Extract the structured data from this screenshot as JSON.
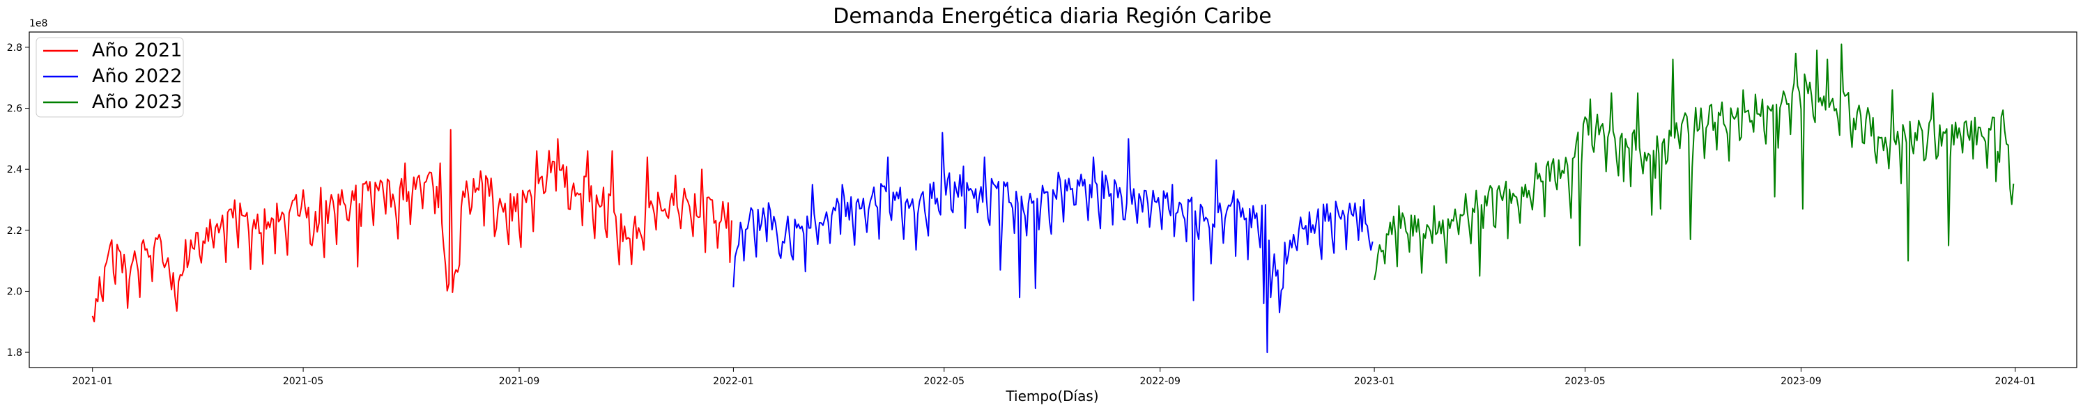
{
  "chart_data": {
    "type": "line",
    "title": "Demanda Energética diaria Región Caribe",
    "xlabel": "Tiempo(Días)",
    "ylabel": "",
    "y_multiplier_label": "1e8",
    "y_scale": 100000000,
    "xlim": [
      "2020-11-26",
      "2024-02-05"
    ],
    "ylim": [
      1.75,
      2.85
    ],
    "yticks": [
      1.8,
      2.0,
      2.2,
      2.4,
      2.6,
      2.8
    ],
    "ytick_labels": [
      "1.8",
      "2.0",
      "2.2",
      "2.4",
      "2.6",
      "2.8"
    ],
    "xticks": [
      "2021-01-01",
      "2021-05-01",
      "2021-09-01",
      "2022-01-01",
      "2022-05-01",
      "2022-09-01",
      "2023-01-01",
      "2023-05-01",
      "2023-09-01",
      "2024-01-01"
    ],
    "xtick_labels": [
      "2021-01",
      "2021-05",
      "2021-09",
      "2022-01",
      "2022-05",
      "2022-09",
      "2023-01",
      "2023-05",
      "2023-09",
      "2024-01"
    ],
    "grid": false,
    "legend_position": "top-left",
    "series": [
      {
        "name": "Año 2021",
        "color": "#ff0000",
        "start": "2021-01-01",
        "end": "2021-12-31",
        "anchors": [
          [
            0,
            1.88
          ],
          [
            3,
            1.96
          ],
          [
            6,
            2.08
          ],
          [
            12,
            2.13
          ],
          [
            20,
            2.05
          ],
          [
            30,
            2.12
          ],
          [
            40,
            2.16
          ],
          [
            47,
            1.97
          ],
          [
            55,
            2.15
          ],
          [
            70,
            2.2
          ],
          [
            80,
            2.24
          ],
          [
            90,
            2.2
          ],
          [
            100,
            2.23
          ],
          [
            110,
            2.22
          ],
          [
            118,
            2.3
          ],
          [
            125,
            2.2
          ],
          [
            140,
            2.27
          ],
          [
            155,
            2.32
          ],
          [
            170,
            2.3
          ],
          [
            182,
            2.32
          ],
          [
            195,
            2.35
          ],
          [
            205,
            1.95
          ],
          [
            211,
            2.3
          ],
          [
            220,
            2.35
          ],
          [
            240,
            2.25
          ],
          [
            250,
            2.3
          ],
          [
            260,
            2.4
          ],
          [
            275,
            2.32
          ],
          [
            290,
            2.3
          ],
          [
            305,
            2.15
          ],
          [
            320,
            2.28
          ],
          [
            335,
            2.3
          ],
          [
            350,
            2.25
          ],
          [
            364,
            2.22
          ]
        ],
        "spikes": [
          [
            23,
            2.1
          ],
          [
            85,
            2.25
          ],
          [
            130,
            2.34
          ],
          [
            151,
            2.08
          ],
          [
            163,
            2.33
          ],
          [
            178,
            2.42
          ],
          [
            186,
            2.38
          ],
          [
            198,
            2.42
          ],
          [
            204,
            2.53
          ],
          [
            229,
            2.18
          ],
          [
            253,
            2.46
          ],
          [
            265,
            2.5
          ],
          [
            282,
            2.46
          ],
          [
            296,
            2.46
          ],
          [
            316,
            2.44
          ],
          [
            332,
            2.38
          ],
          [
            347,
            2.4
          ],
          [
            362,
            2.29
          ]
        ]
      },
      {
        "name": "Año 2022",
        "color": "#0000ff",
        "start": "2022-01-01",
        "end": "2022-12-31",
        "anchors": [
          [
            0,
            2.03
          ],
          [
            5,
            2.2
          ],
          [
            15,
            2.22
          ],
          [
            30,
            2.18
          ],
          [
            45,
            2.2
          ],
          [
            60,
            2.25
          ],
          [
            75,
            2.27
          ],
          [
            90,
            2.33
          ],
          [
            105,
            2.25
          ],
          [
            120,
            2.33
          ],
          [
            135,
            2.33
          ],
          [
            150,
            2.3
          ],
          [
            165,
            2.28
          ],
          [
            180,
            2.3
          ],
          [
            195,
            2.33
          ],
          [
            210,
            2.33
          ],
          [
            225,
            2.3
          ],
          [
            240,
            2.27
          ],
          [
            255,
            2.27
          ],
          [
            270,
            2.22
          ],
          [
            282,
            2.25
          ],
          [
            295,
            2.22
          ],
          [
            303,
            2.22
          ],
          [
            312,
            2.0
          ],
          [
            320,
            2.2
          ],
          [
            335,
            2.22
          ],
          [
            350,
            2.25
          ],
          [
            364,
            2.18
          ]
        ],
        "spikes": [
          [
            20,
            2.29
          ],
          [
            45,
            2.35
          ],
          [
            62,
            2.35
          ],
          [
            88,
            2.44
          ],
          [
            119,
            2.52
          ],
          [
            131,
            2.41
          ],
          [
            143,
            2.44
          ],
          [
            152,
            2.07
          ],
          [
            163,
            1.98
          ],
          [
            172,
            2.01
          ],
          [
            185,
            2.39
          ],
          [
            205,
            2.44
          ],
          [
            225,
            2.5
          ],
          [
            250,
            2.35
          ],
          [
            262,
            1.97
          ],
          [
            275,
            2.43
          ],
          [
            285,
            2.33
          ],
          [
            299,
            2.19
          ],
          [
            302,
            1.96
          ],
          [
            304,
            1.8
          ],
          [
            306,
            1.98
          ],
          [
            309,
            2.05
          ],
          [
            311,
            1.93
          ],
          [
            314,
            2.16
          ],
          [
            328,
            2.26
          ],
          [
            344,
            2.27
          ],
          [
            359,
            2.3
          ]
        ]
      },
      {
        "name": "Año 2023",
        "color": "#008000",
        "start": "2023-01-01",
        "end": "2023-12-31",
        "anchors": [
          [
            0,
            2.02
          ],
          [
            5,
            2.18
          ],
          [
            20,
            2.2
          ],
          [
            35,
            2.18
          ],
          [
            50,
            2.25
          ],
          [
            65,
            2.28
          ],
          [
            80,
            2.3
          ],
          [
            95,
            2.35
          ],
          [
            110,
            2.4
          ],
          [
            118,
            2.5
          ],
          [
            125,
            2.55
          ],
          [
            140,
            2.48
          ],
          [
            155,
            2.45
          ],
          [
            170,
            2.5
          ],
          [
            185,
            2.55
          ],
          [
            200,
            2.55
          ],
          [
            215,
            2.58
          ],
          [
            230,
            2.6
          ],
          [
            245,
            2.65
          ],
          [
            255,
            2.6
          ],
          [
            268,
            2.6
          ],
          [
            280,
            2.55
          ],
          [
            290,
            2.45
          ],
          [
            305,
            2.5
          ],
          [
            320,
            2.5
          ],
          [
            335,
            2.5
          ],
          [
            350,
            2.5
          ],
          [
            358,
            2.53
          ],
          [
            364,
            2.31
          ]
        ],
        "spikes": [
          [
            14,
            2.28
          ],
          [
            34,
            2.28
          ],
          [
            52,
            2.32
          ],
          [
            60,
            2.05
          ],
          [
            75,
            2.36
          ],
          [
            92,
            2.42
          ],
          [
            105,
            2.43
          ],
          [
            112,
            2.24
          ],
          [
            117,
            2.15
          ],
          [
            123,
            2.63
          ],
          [
            135,
            2.65
          ],
          [
            142,
            2.36
          ],
          [
            150,
            2.65
          ],
          [
            158,
            2.25
          ],
          [
            163,
            2.27
          ],
          [
            170,
            2.76
          ],
          [
            180,
            2.17
          ],
          [
            198,
            2.62
          ],
          [
            210,
            2.66
          ],
          [
            228,
            2.31
          ],
          [
            240,
            2.78
          ],
          [
            244,
            2.27
          ],
          [
            252,
            2.79
          ],
          [
            258,
            2.76
          ],
          [
            266,
            2.81
          ],
          [
            274,
            2.53
          ],
          [
            286,
            2.42
          ],
          [
            295,
            2.66
          ],
          [
            304,
            2.1
          ],
          [
            318,
            2.65
          ],
          [
            327,
            2.15
          ],
          [
            342,
            2.57
          ],
          [
            354,
            2.36
          ]
        ]
      }
    ]
  }
}
